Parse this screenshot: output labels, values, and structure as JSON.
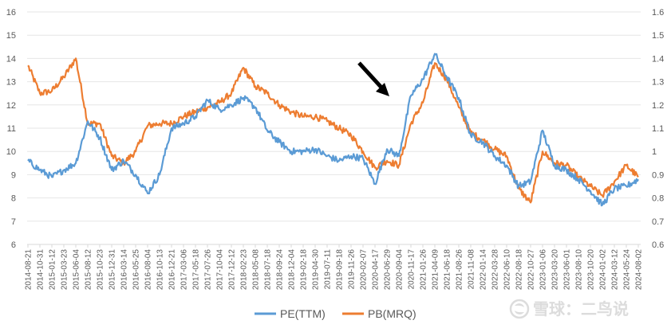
{
  "chart_data": {
    "type": "line",
    "title": "",
    "xlabel": "",
    "ylabel": "",
    "y_left": {
      "min": 6,
      "max": 16,
      "step": 1
    },
    "y_right": {
      "min": 0.6,
      "max": 1.6,
      "step": 0.1
    },
    "x_tick_labels": [
      "2014-08-21",
      "2014-10-31",
      "2015-01-12",
      "2015-03-23",
      "2015-06-04",
      "2015-08-12",
      "2015-10-23",
      "2015-12-31",
      "2016-03-14",
      "2016-05-25",
      "2016-08-04",
      "2016-10-13",
      "2016-12-21",
      "2017-03-06",
      "2017-05-18",
      "2017-07-26",
      "2017-10-04",
      "2017-12-12",
      "2018-02-23",
      "2018-05-08",
      "2018-07-18",
      "2018-09-24",
      "2018-12-04",
      "2019-02-18",
      "2019-04-30",
      "2019-07-11",
      "2019-09-18",
      "2019-11-26",
      "2020-02-07",
      "2020-04-17",
      "2020-06-29",
      "2020-09-04",
      "2020-11-17",
      "2021-01-26",
      "2021-04-09",
      "2021-06-18",
      "2021-08-26",
      "2021-11-08",
      "2022-01-14",
      "2022-03-28",
      "2022-06-10",
      "2022-08-18",
      "2022-10-27",
      "2023-01-06",
      "2023-03-20",
      "2023-06-01",
      "2023-08-10",
      "2023-10-20",
      "2024-01-02",
      "2024-03-12",
      "2024-05-24",
      "2024-08-02"
    ],
    "series": [
      {
        "name": "PE(TTM)",
        "axis": "left",
        "color": "#5B9BD5",
        "values": [
          9.6,
          9.2,
          8.9,
          9.2,
          9.5,
          11.3,
          10.6,
          9.2,
          9.6,
          9.0,
          8.2,
          9.0,
          11.0,
          11.2,
          11.5,
          12.2,
          11.8,
          12.0,
          12.3,
          11.9,
          10.9,
          10.4,
          10.0,
          10.0,
          10.1,
          9.8,
          9.6,
          9.8,
          9.7,
          8.6,
          10.1,
          9.8,
          12.4,
          13.1,
          14.2,
          13.2,
          12.3,
          10.7,
          10.4,
          9.8,
          9.4,
          8.5,
          8.7,
          10.9,
          9.4,
          9.2,
          8.8,
          8.3,
          7.7,
          8.4,
          8.5,
          8.8
        ]
      },
      {
        "name": "PB(MRQ)",
        "axis": "right",
        "color": "#ED7D31",
        "values": [
          1.37,
          1.25,
          1.26,
          1.32,
          1.4,
          1.12,
          1.12,
          0.98,
          0.95,
          1.0,
          1.11,
          1.12,
          1.12,
          1.15,
          1.17,
          1.19,
          1.21,
          1.25,
          1.36,
          1.28,
          1.25,
          1.2,
          1.17,
          1.15,
          1.15,
          1.13,
          1.1,
          1.07,
          1.0,
          0.93,
          0.96,
          0.94,
          1.12,
          1.21,
          1.38,
          1.31,
          1.19,
          1.08,
          1.05,
          1.01,
          0.98,
          0.84,
          0.78,
          1.0,
          0.95,
          0.94,
          0.89,
          0.85,
          0.81,
          0.87,
          0.94,
          0.89
        ]
      }
    ],
    "legend": {
      "position": "bottom",
      "entries": [
        "PE(TTM)",
        "PB(MRQ)"
      ]
    },
    "annotations": [
      {
        "type": "arrow",
        "color": "#000000",
        "points_to": "2020-07-06",
        "value": 12.3
      }
    ]
  },
  "watermark": {
    "logo_icon": "snowball-logo-icon",
    "text": "雪球：二鸟说"
  }
}
